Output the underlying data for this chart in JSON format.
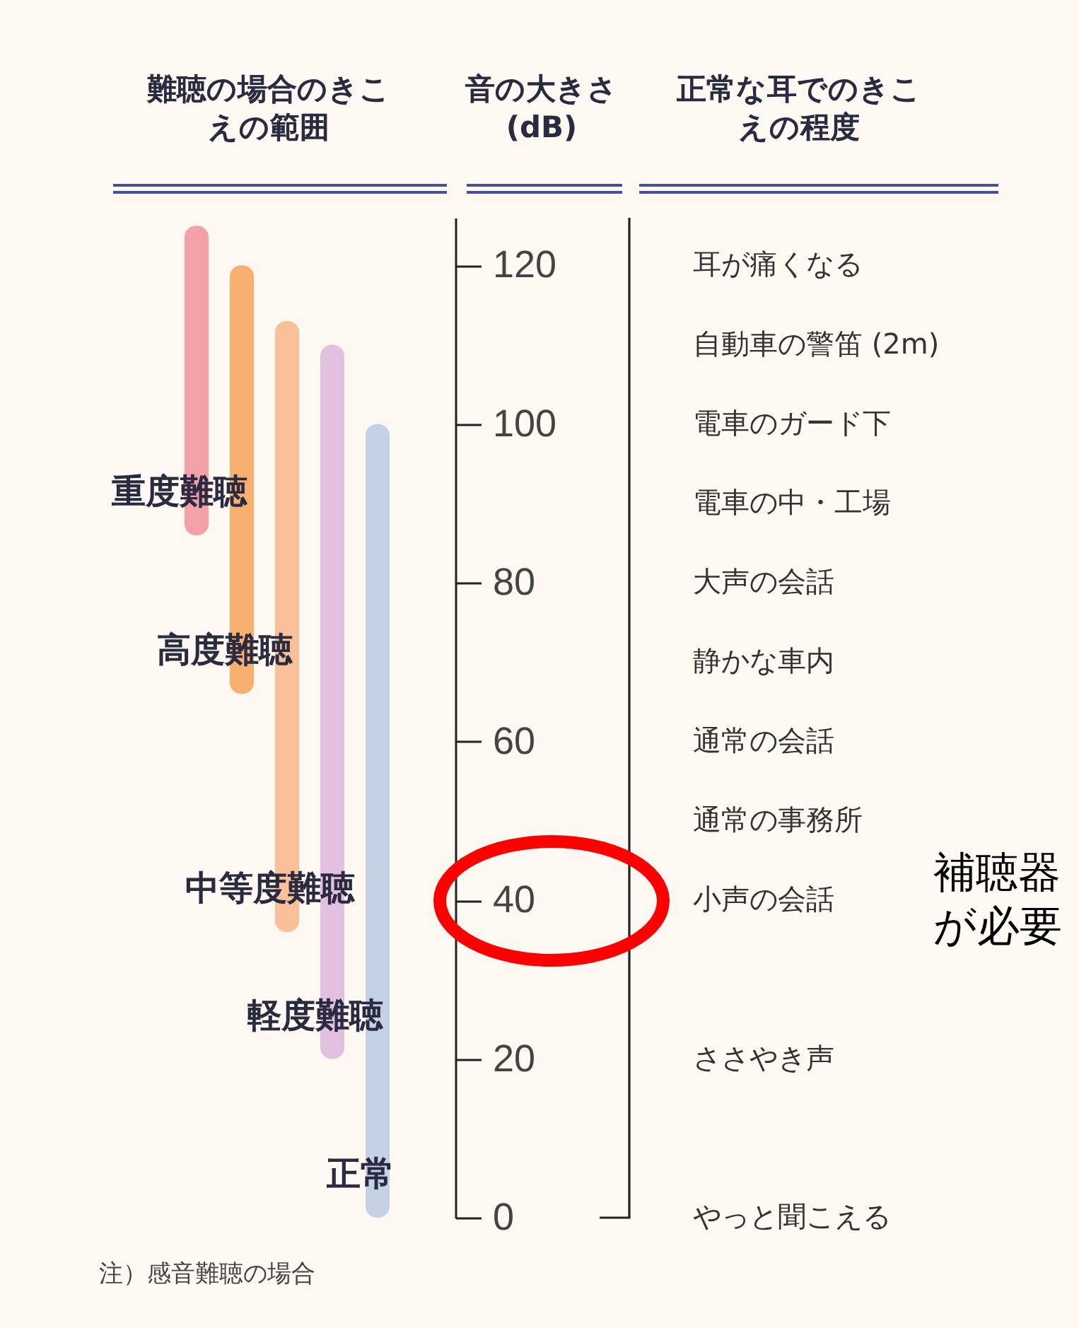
{
  "chart_data": {
    "type": "bar",
    "ylabel": "音の大きさ (dB)",
    "categories": [
      "重度難聴",
      "高度難聴",
      "中等度難聴",
      "軽度難聴",
      "正常"
    ],
    "values": [
      39,
      54,
      77,
      90,
      100
    ],
    "base": [
      86,
      66,
      36,
      20,
      0
    ],
    "colors": [
      "#f4a0a8",
      "#f7b070",
      "#f9c09a",
      "#e2c0e0",
      "#c5d2e6"
    ],
    "ylim": [
      0,
      126
    ],
    "yticks": [
      0,
      20,
      40,
      60,
      80,
      100,
      120
    ],
    "grid": false,
    "annotations": [
      "難聴の場合のきこえの範囲",
      "正常な耳でのきこえの程度",
      "注）感音難聴の場合",
      "補聴器が必要",
      "耳が痛くなる",
      "自動車の警笛 (2m)",
      "電車のガード下",
      "電車の中・工場",
      "大声の会話",
      "静かな車内",
      "通常の会話",
      "通常の事務所",
      "小声の会話",
      "ささやき声",
      "やっと聞こえる"
    ]
  }
}
